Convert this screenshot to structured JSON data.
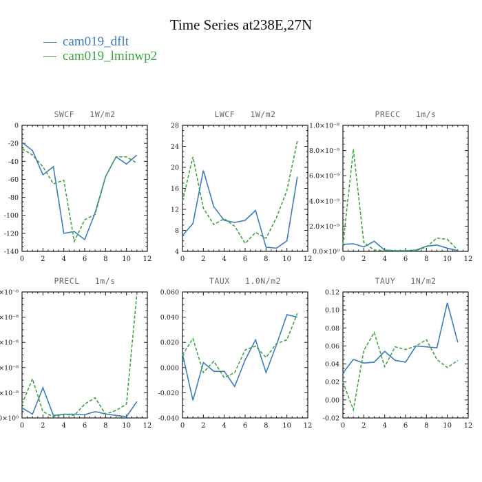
{
  "header": {
    "title": "Time Series at238E,27N"
  },
  "legend": {
    "items": [
      {
        "dash": "—",
        "label": "cam019_dflt",
        "color": "#3B7CBE"
      },
      {
        "dash": "—",
        "label": "cam019_lminwp2",
        "color": "#3FA343"
      }
    ]
  },
  "colors": {
    "series1": "#3B7CBE",
    "series2": "#3FA343",
    "axis": "#1a1a1a",
    "subplot_title": "#666666"
  },
  "chart_data": [
    {
      "type": "line",
      "name": "swcf",
      "title": "SWCF",
      "units": "1W/m2",
      "x": [
        0,
        1,
        2,
        3,
        4,
        5,
        6,
        7,
        8,
        9,
        10,
        11
      ],
      "xlim": [
        0,
        12
      ],
      "xticks": [
        0,
        2,
        4,
        6,
        8,
        10,
        12
      ],
      "xminor": 0.5,
      "ylim": [
        -140,
        0
      ],
      "yminor": 5,
      "ytick_vals": [
        0,
        -20,
        -40,
        -60,
        -80,
        -100,
        -120,
        -140
      ],
      "ytick_labels": [
        "0",
        "-20",
        "-40",
        "-60",
        "-80",
        "-100",
        "-120",
        "-140"
      ],
      "series": [
        {
          "name": "cam019_dflt",
          "values": [
            -19,
            -28,
            -55,
            -46,
            -120,
            -118,
            -127,
            -97,
            -57,
            -35,
            -43,
            -33
          ]
        },
        {
          "name": "cam019_lminwp2",
          "values": [
            -26,
            -33,
            -46,
            -65,
            -61,
            -129,
            -105,
            -99,
            -57,
            -35,
            -35,
            -42
          ]
        }
      ]
    },
    {
      "type": "line",
      "name": "lwcf",
      "title": "LWCF",
      "units": "1W/m2",
      "x": [
        0,
        1,
        2,
        3,
        4,
        5,
        6,
        7,
        8,
        9,
        10,
        11
      ],
      "xlim": [
        0,
        12
      ],
      "xticks": [
        0,
        2,
        4,
        6,
        8,
        10,
        12
      ],
      "xminor": 0.5,
      "ylim": [
        4,
        28
      ],
      "yminor": 1,
      "ytick_vals": [
        28,
        24,
        20,
        16,
        12,
        8,
        4
      ],
      "ytick_labels": [
        "28",
        "24",
        "20",
        "16",
        "12",
        "8",
        "4"
      ],
      "series": [
        {
          "name": "cam019_dflt",
          "values": [
            7.0,
            9.3,
            19.4,
            12.5,
            9.9,
            9.5,
            9.9,
            11.8,
            4.8,
            4.6,
            6.0,
            18.2
          ]
        },
        {
          "name": "cam019_lminwp2",
          "values": [
            13.5,
            22.0,
            12.2,
            9.1,
            10.2,
            8.8,
            5.5,
            7.6,
            6.5,
            10.4,
            15.6,
            25.0
          ]
        }
      ]
    },
    {
      "type": "line",
      "name": "precc",
      "title": "PRECC",
      "units": "1m/s",
      "value_scale_note": "values in units of 1e-9 as labeled on axis",
      "x": [
        0,
        1,
        2,
        3,
        4,
        5,
        6,
        7,
        8,
        9,
        10,
        11
      ],
      "xlim": [
        0,
        12
      ],
      "xticks": [
        0,
        2,
        4,
        6,
        8,
        10,
        12
      ],
      "xminor": 0.5,
      "ylim": [
        0,
        10
      ],
      "yminor": 0.5,
      "ytick_vals": [
        10,
        8,
        6,
        4,
        2,
        0
      ],
      "ytick_labels": [
        "1.0×10⁻⁸",
        "8.0×10⁻⁹",
        "6.0×10⁻⁹",
        "4.0×10⁻⁹",
        "2.0×10⁻⁹",
        "0.0×10⁰"
      ],
      "series": [
        {
          "name": "cam019_dflt",
          "values": [
            0.55,
            0.6,
            0.35,
            0.8,
            0.1,
            0.05,
            0.05,
            0.1,
            0.4,
            0.5,
            0.25,
            0.05
          ]
        },
        {
          "name": "cam019_lminwp2",
          "values": [
            0.5,
            8.1,
            0.7,
            0.1,
            0.05,
            0.05,
            0.05,
            0.05,
            0.35,
            1.05,
            0.95,
            0.1
          ]
        }
      ]
    },
    {
      "type": "line",
      "name": "precl",
      "title": "PRECL",
      "units": "1m/s",
      "value_scale_note": "values in units of 1e-8 as labeled on axis",
      "x": [
        0,
        1,
        2,
        3,
        4,
        5,
        6,
        7,
        8,
        9,
        10,
        11
      ],
      "xlim": [
        0,
        12
      ],
      "xticks": [
        0,
        2,
        4,
        6,
        8,
        10,
        12
      ],
      "xminor": 0.5,
      "ylim": [
        0,
        5
      ],
      "yminor": 0.25,
      "ytick_vals": [
        5,
        4,
        3,
        2,
        1,
        0
      ],
      "ytick_labels": [
        "5.0×10⁻⁸",
        "4.0×10⁻⁸",
        "3.0×10⁻⁸",
        "2.0×10⁻⁸",
        "1.0×10⁻⁸",
        "0.0×10⁰"
      ],
      "series": [
        {
          "name": "cam019_dflt",
          "values": [
            0.4,
            0.15,
            1.2,
            0.1,
            0.15,
            0.15,
            0.13,
            0.25,
            0.16,
            0.1,
            0.05,
            0.65
          ]
        },
        {
          "name": "cam019_lminwp2",
          "values": [
            0.55,
            1.55,
            0.25,
            0.05,
            0.15,
            0.1,
            0.55,
            0.8,
            0.15,
            0.3,
            0.55,
            4.95
          ]
        }
      ]
    },
    {
      "type": "line",
      "name": "taux",
      "title": "TAUX",
      "units": "1.0N/m2",
      "x": [
        0,
        1,
        2,
        3,
        4,
        5,
        6,
        7,
        8,
        9,
        10,
        11
      ],
      "xlim": [
        0,
        12
      ],
      "xticks": [
        0,
        2,
        4,
        6,
        8,
        10,
        12
      ],
      "xminor": 0.5,
      "ylim": [
        -0.04,
        0.06
      ],
      "yminor": 0.005,
      "ytick_vals": [
        0.06,
        0.04,
        0.02,
        0.0,
        -0.02,
        -0.04
      ],
      "ytick_labels": [
        "0.060",
        "0.040",
        "0.020",
        "0.000",
        "-0.020",
        "-0.040"
      ],
      "series": [
        {
          "name": "cam019_dflt",
          "values": [
            0.011,
            -0.026,
            0.004,
            -0.003,
            -0.003,
            -0.015,
            0.006,
            0.022,
            -0.004,
            0.018,
            0.042,
            0.04
          ]
        },
        {
          "name": "cam019_lminwp2",
          "values": [
            0.01,
            0.023,
            -0.004,
            0.005,
            -0.008,
            -0.004,
            0.014,
            0.017,
            0.008,
            0.019,
            0.022,
            0.043
          ]
        }
      ]
    },
    {
      "type": "line",
      "name": "tauy",
      "title": "TAUY",
      "units": "1N/m2",
      "x": [
        0,
        1,
        2,
        3,
        4,
        5,
        6,
        7,
        8,
        9,
        10,
        11
      ],
      "xlim": [
        0,
        12
      ],
      "xticks": [
        0,
        2,
        4,
        6,
        8,
        10,
        12
      ],
      "xminor": 0.5,
      "ylim": [
        -0.02,
        0.12
      ],
      "yminor": 0.005,
      "ytick_vals": [
        0.12,
        0.1,
        0.08,
        0.06,
        0.04,
        0.02,
        0.0,
        -0.02
      ],
      "ytick_labels": [
        "0.12",
        "0.10",
        "0.08",
        "0.06",
        "0.04",
        "0.02",
        "0.00",
        "-0.02"
      ],
      "series": [
        {
          "name": "cam019_dflt",
          "values": [
            0.03,
            0.045,
            0.041,
            0.042,
            0.054,
            0.044,
            0.042,
            0.06,
            0.059,
            0.058,
            0.108,
            0.064
          ]
        },
        {
          "name": "cam019_lminwp2",
          "values": [
            0.02,
            -0.011,
            0.055,
            0.075,
            0.037,
            0.059,
            0.056,
            0.06,
            0.067,
            0.045,
            0.036,
            0.044
          ]
        }
      ]
    }
  ],
  "layout_labels": {
    "note": "x axis shared range 0-12, months 0-11 plotted"
  }
}
